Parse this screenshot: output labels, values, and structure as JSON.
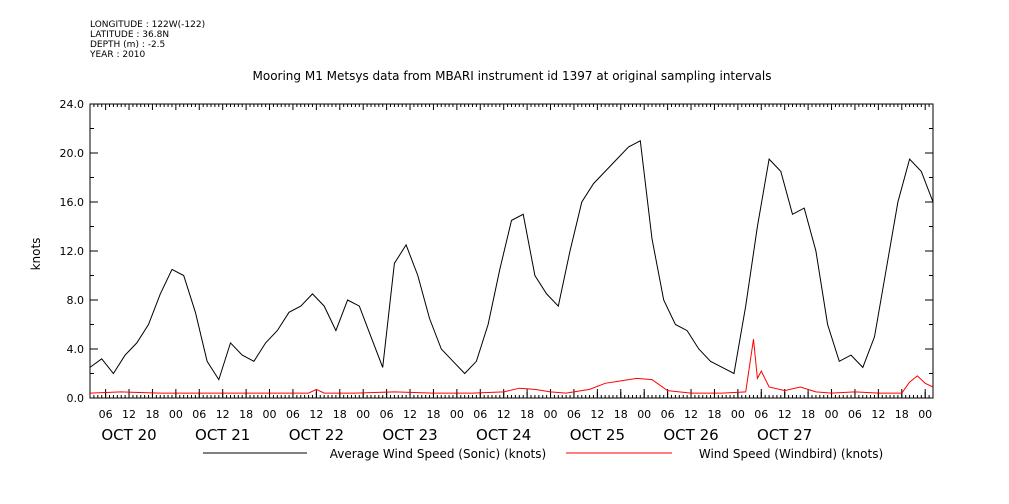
{
  "header": {
    "longitude": "LONGITUDE : 122W(-122)",
    "latitude": "LATITUDE : 36.8N",
    "depth": "DEPTH (m) : -2.5",
    "year": "YEAR : 2010"
  },
  "chart_data": {
    "type": "line",
    "title": "Mooring M1 Metsys data from MBARI instrument id 1397 at original sampling intervals",
    "ylabel": "knots",
    "xlabel": "",
    "ylim": [
      0,
      24
    ],
    "yticks": [
      "0.0",
      "4.0",
      "8.0",
      "12.0",
      "16.0",
      "20.0",
      "24.0"
    ],
    "xlim_hours": [
      2,
      218
    ],
    "hour_tick_labels": [
      "06",
      "12",
      "18",
      "00",
      "06",
      "12",
      "18",
      "00",
      "06",
      "12",
      "18",
      "00",
      "06",
      "12",
      "18",
      "00",
      "06",
      "12",
      "18",
      "00",
      "06",
      "12",
      "18",
      "00",
      "06",
      "12",
      "18",
      "00",
      "06",
      "12",
      "18",
      "00",
      "06",
      "12",
      "18",
      "00"
    ],
    "day_labels": [
      "OCT 20",
      "OCT 21",
      "OCT 22",
      "OCT 23",
      "OCT 24",
      "OCT 25",
      "OCT 26",
      "OCT 27"
    ],
    "x_unit": "hours since 2010-10-20 00:00",
    "series": [
      {
        "name": "Average Wind Speed (Sonic) (knots)",
        "color": "#000000",
        "x": [
          2,
          5,
          8,
          11,
          14,
          17,
          20,
          23,
          26,
          29,
          32,
          35,
          38,
          41,
          44,
          47,
          50,
          53,
          56,
          59,
          62,
          65,
          68,
          71,
          74,
          77,
          80,
          83,
          86,
          89,
          92,
          95,
          98,
          101,
          104,
          107,
          110,
          113,
          116,
          119,
          122,
          125,
          128,
          131,
          134,
          137,
          140,
          143,
          146,
          149,
          152,
          155,
          158,
          161,
          164,
          167,
          170,
          173,
          176,
          179,
          182,
          185,
          188,
          191,
          194,
          197,
          200,
          203,
          206,
          209,
          212,
          215,
          218
        ],
        "values": [
          2.5,
          3.2,
          2.0,
          3.5,
          4.5,
          6.0,
          8.5,
          10.5,
          10.0,
          7.0,
          3.0,
          1.5,
          4.5,
          3.5,
          3.0,
          4.5,
          5.5,
          7.0,
          7.5,
          8.5,
          7.5,
          5.5,
          8.0,
          7.5,
          5.0,
          2.5,
          11.0,
          12.5,
          10.0,
          6.5,
          4.0,
          3.0,
          2.0,
          3.0,
          6.0,
          10.5,
          14.5,
          15.0,
          10.0,
          8.5,
          7.5,
          12.0,
          16.0,
          17.5,
          18.5,
          19.5,
          20.5,
          21.0,
          13.0,
          8.0,
          6.0,
          5.5,
          4.0,
          3.0,
          2.5,
          2.0,
          7.5,
          14.0,
          19.5,
          18.5,
          15.0,
          15.5,
          12.0,
          6.0,
          3.0,
          3.5,
          2.5,
          5.0,
          10.5,
          16.0,
          19.5,
          18.5,
          16.0
        ]
      },
      {
        "name": "Wind Speed (Windbird) (knots)",
        "color": "#ff0000",
        "x": [
          2,
          10,
          20,
          30,
          40,
          50,
          58,
          60,
          62,
          70,
          80,
          90,
          100,
          108,
          112,
          116,
          120,
          124,
          130,
          134,
          138,
          142,
          146,
          150,
          156,
          164,
          170,
          172,
          173,
          174,
          176,
          180,
          184,
          188,
          192,
          198,
          204,
          210,
          212,
          214,
          216,
          218
        ],
        "values": [
          0.4,
          0.5,
          0.4,
          0.4,
          0.4,
          0.4,
          0.4,
          0.7,
          0.4,
          0.4,
          0.5,
          0.4,
          0.4,
          0.5,
          0.8,
          0.7,
          0.5,
          0.4,
          0.7,
          1.2,
          1.4,
          1.6,
          1.5,
          0.6,
          0.4,
          0.4,
          0.5,
          4.8,
          1.6,
          2.2,
          0.9,
          0.6,
          0.9,
          0.5,
          0.4,
          0.5,
          0.4,
          0.4,
          1.3,
          1.8,
          1.2,
          0.9
        ]
      }
    ]
  }
}
